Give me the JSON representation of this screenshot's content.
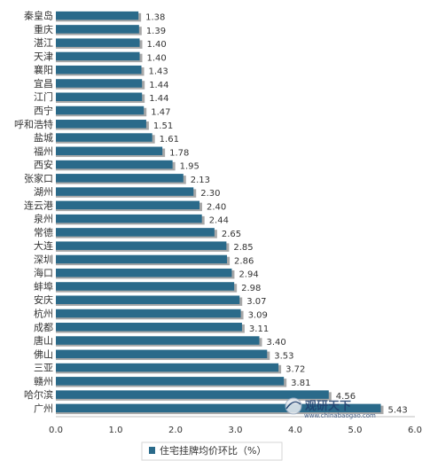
{
  "chart_data": {
    "type": "bar",
    "orientation": "horizontal",
    "categories": [
      "秦皇岛",
      "重庆",
      "湛江",
      "天津",
      "襄阳",
      "宜昌",
      "江门",
      "西宁",
      "呼和浩特",
      "盐城",
      "福州",
      "西安",
      "张家口",
      "湖州",
      "连云港",
      "泉州",
      "常德",
      "大连",
      "深圳",
      "海口",
      "蚌埠",
      "安庆",
      "杭州",
      "成都",
      "唐山",
      "佛山",
      "三亚",
      "赣州",
      "哈尔滨",
      "广州"
    ],
    "series": [
      {
        "name": "住宅挂牌均价环比（%）",
        "values": [
          1.38,
          1.39,
          1.4,
          1.4,
          1.43,
          1.44,
          1.44,
          1.47,
          1.51,
          1.61,
          1.78,
          1.95,
          2.13,
          2.3,
          2.4,
          2.44,
          2.65,
          2.85,
          2.86,
          2.94,
          2.98,
          3.07,
          3.09,
          3.11,
          3.4,
          3.53,
          3.72,
          3.81,
          4.56,
          5.43
        ],
        "labels": [
          "1.38",
          "1.39",
          "1.40",
          "1.40",
          "1.43",
          "1.44",
          "1.44",
          "1.47",
          "1.51",
          "1.61",
          "1.78",
          "1.95",
          "2.13",
          "2.30",
          "2.40",
          "2.44",
          "2.65",
          "2.85",
          "2.86",
          "2.94",
          "2.98",
          "3.07",
          "3.09",
          "3.11",
          "3.40",
          "3.53",
          "3.72",
          "3.81",
          "4.56",
          "5.43"
        ]
      }
    ],
    "x_ticks": [
      "0.0",
      "1.0",
      "2.0",
      "3.0",
      "4.0",
      "5.0",
      "6.0"
    ],
    "xlim": [
      0,
      6
    ],
    "grid": false,
    "legend_position": "bottom",
    "colors": {
      "bar": "#2a6a8a",
      "shadow": "#a8a8a8"
    }
  },
  "watermark": {
    "text": "观研天下",
    "url": "www.chinabaogao.com"
  }
}
